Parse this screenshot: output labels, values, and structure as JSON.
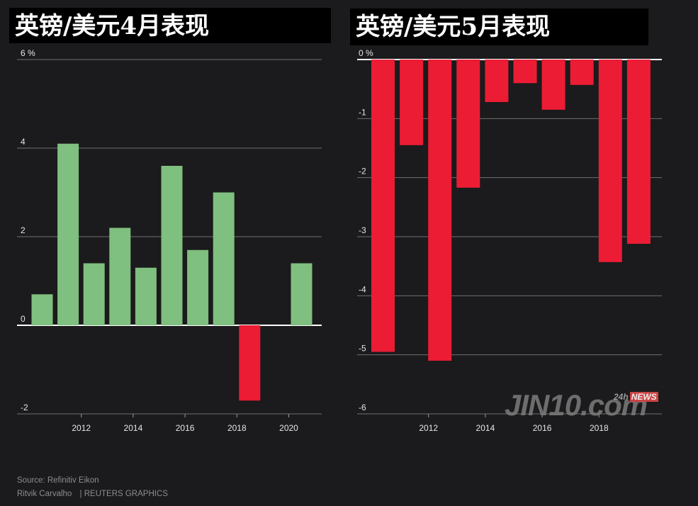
{
  "chart_data": [
    {
      "type": "bar",
      "title": "英镑/美元4月表现",
      "categories": [
        "2010",
        "2011",
        "2012",
        "2013",
        "2014",
        "2015",
        "2016",
        "2017",
        "2018",
        "2019",
        "2020"
      ],
      "values": [
        0.7,
        4.1,
        1.4,
        2.2,
        1.3,
        3.6,
        1.7,
        3.0,
        -1.7,
        0.0,
        1.4
      ],
      "ylim": [
        -2,
        6
      ],
      "yticks": [
        "-2",
        "0",
        "2",
        "4",
        "6 %"
      ],
      "xticks": [
        "2012",
        "2014",
        "2016",
        "2018",
        "2020"
      ],
      "positive_color": "#7fbf7f",
      "negative_color": "#ec1c34"
    },
    {
      "type": "bar",
      "title": "英镑/美元5月表现",
      "categories": [
        "2010",
        "2011",
        "2012",
        "2013",
        "2014",
        "2015",
        "2016",
        "2017",
        "2018",
        "2019"
      ],
      "values": [
        -4.95,
        -1.45,
        -5.1,
        -2.17,
        -0.72,
        -0.4,
        -0.85,
        -0.43,
        -3.43,
        -3.12
      ],
      "ylim": [
        -6,
        0
      ],
      "yticks": [
        "-6",
        "-5",
        "-4",
        "-3",
        "-2",
        "-1",
        "0 %"
      ],
      "xticks": [
        "2012",
        "2014",
        "2016",
        "2018"
      ],
      "positive_color": "#7fbf7f",
      "negative_color": "#ec1c34"
    }
  ],
  "footer": {
    "source": "Source: Refinitiv Eikon",
    "credit": "Ritvik Carvalho",
    "agency": "| REUTERS GRAPHICS"
  },
  "watermark": {
    "brand": "JIN10.com",
    "tag_24h": "24h",
    "tag_news": "NEWS"
  }
}
